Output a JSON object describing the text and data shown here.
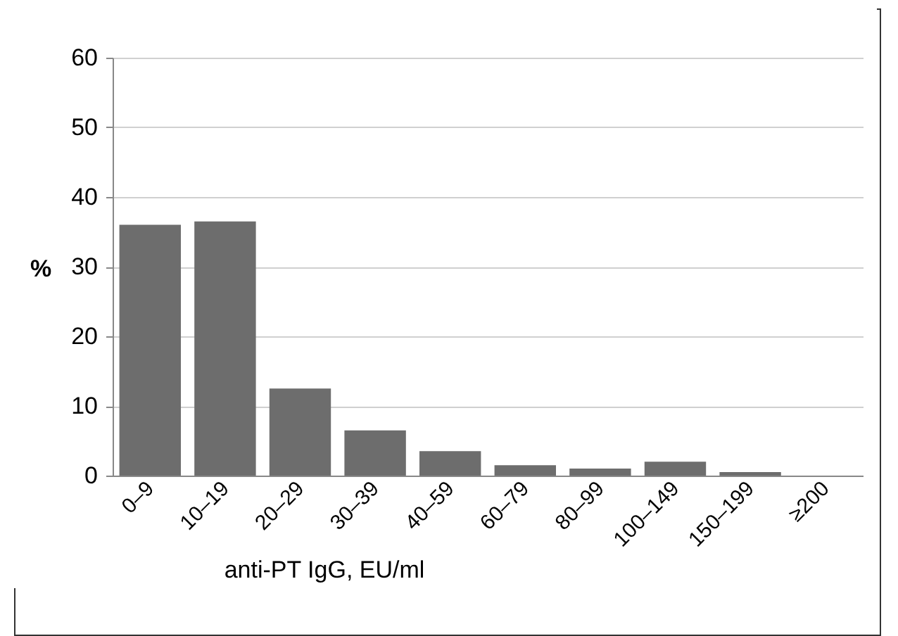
{
  "chart_data": {
    "type": "bar",
    "xlabel": "anti-PT IgG, EU/ml",
    "ylabel": "%",
    "categories": [
      "0–9",
      "10–19",
      "20–29",
      "30–39",
      "40–59",
      "60–79",
      "80–99",
      "100–149",
      "150–199",
      "≥200"
    ],
    "values": [
      36,
      36.5,
      12.5,
      6.5,
      3.5,
      1.5,
      1,
      2,
      0.5,
      0
    ],
    "color": "#6d6d6d",
    "ylim": [
      0,
      60
    ],
    "yticks": [
      0,
      10,
      20,
      30,
      40,
      50,
      60
    ],
    "grid": "y"
  }
}
